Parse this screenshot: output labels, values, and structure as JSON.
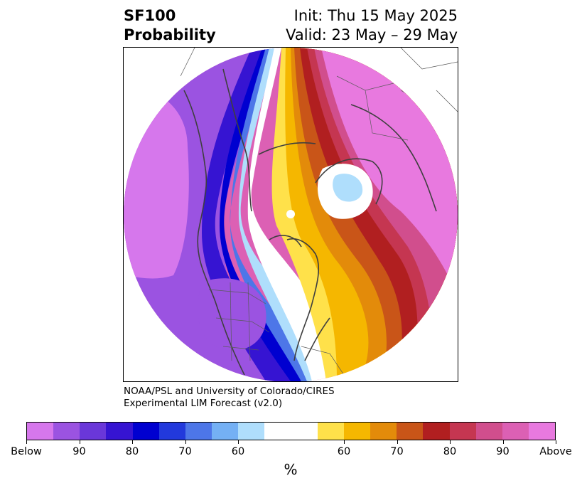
{
  "title": {
    "line1_left": "SF100",
    "line2_left": "Probability",
    "line1_right": "Init: Thu 15 May 2025",
    "line2_right": "Valid: 23 May – 29 May"
  },
  "credit": {
    "line1": "NOAA/PSL and University of Colorado/CIRES",
    "line2": "Experimental LIM Forecast (v2.0)"
  },
  "colorbar": {
    "colors": [
      "#d677ec",
      "#9b53e1",
      "#6a37d9",
      "#3614d2",
      "#0000d0",
      "#2239dc",
      "#4d76e8",
      "#74b0f4",
      "#afdefc",
      "#ffffff",
      "#ffffff",
      "#ffe14a",
      "#f5b700",
      "#e38b0a",
      "#c95518",
      "#b11f20",
      "#c53651",
      "#d14e8d",
      "#dc60b4",
      "#e879df"
    ],
    "ticks": [
      {
        "label": "Below",
        "index": 0
      },
      {
        "label": "90",
        "index": 2
      },
      {
        "label": "80",
        "index": 4
      },
      {
        "label": "70",
        "index": 6
      },
      {
        "label": "60",
        "index": 8
      },
      {
        "label": "60",
        "index": 12
      },
      {
        "label": "70",
        "index": 14
      },
      {
        "label": "80",
        "index": 16
      },
      {
        "label": "90",
        "index": 18
      },
      {
        "label": "Above",
        "index": 20
      }
    ],
    "unit": "%"
  },
  "map": {
    "projection": "polar-stereographic",
    "region": "Northern Hemisphere"
  }
}
